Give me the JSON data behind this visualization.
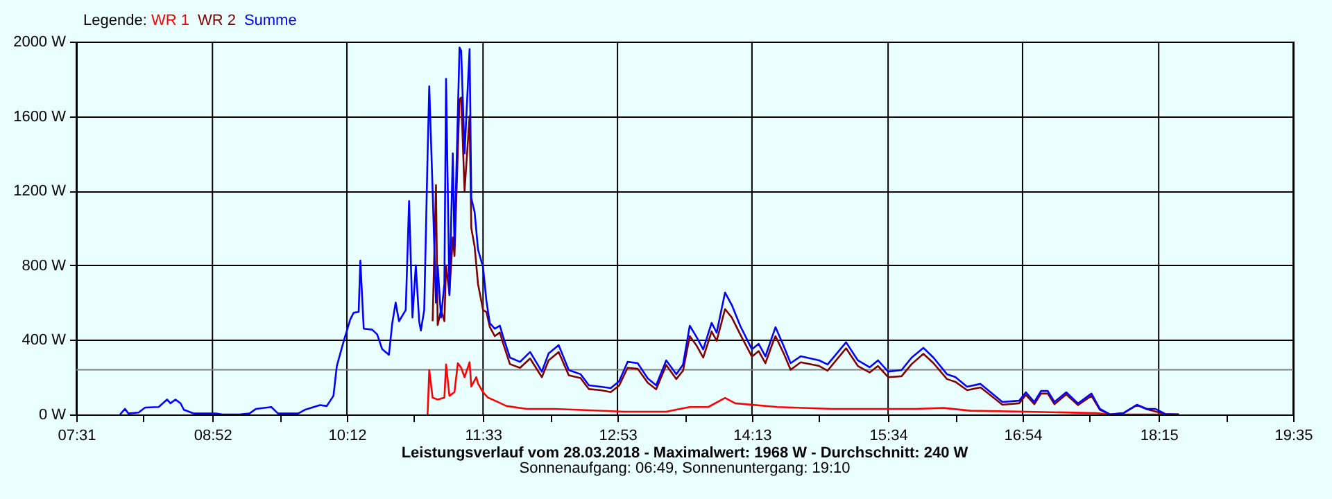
{
  "chart_data": {
    "type": "line",
    "title": "Leistungsverlauf vom 28.03.2018 - Maximalwert: 1968 W - Durchschnitt: 240 W",
    "subtitle": "Sonnenaufgang: 06:49, Sonnenuntergang: 19:10",
    "legend_title": "Legende:",
    "legend": "top left",
    "grid": true,
    "marker": "none",
    "line_style": "solid",
    "xlim": [
      "2018-03-28T07:31",
      "2018-03-28T19:35"
    ],
    "xticks": [
      {
        "value": "2018-03-28T07:31",
        "label": "07:31"
      },
      {
        "value": "2018-03-28T08:11",
        "label": null
      },
      {
        "value": "2018-03-28T08:52",
        "label": "08:52"
      },
      {
        "value": "2018-03-28T09:32",
        "label": null
      },
      {
        "value": "2018-03-28T10:12",
        "label": "10:12"
      },
      {
        "value": "2018-03-28T10:52",
        "label": null
      },
      {
        "value": "2018-03-28T11:33",
        "label": "11:33"
      },
      {
        "value": "2018-03-28T12:13",
        "label": null
      },
      {
        "value": "2018-03-28T12:53",
        "label": "12:53"
      },
      {
        "value": "2018-03-28T13:33",
        "label": null
      },
      {
        "value": "2018-03-28T14:13",
        "label": "14:13"
      },
      {
        "value": "2018-03-28T14:53",
        "label": null
      },
      {
        "value": "2018-03-28T15:34",
        "label": "15:34"
      },
      {
        "value": "2018-03-28T16:14",
        "label": null
      },
      {
        "value": "2018-03-28T16:54",
        "label": "16:54"
      },
      {
        "value": "2018-03-28T17:34",
        "label": null
      },
      {
        "value": "2018-03-28T18:15",
        "label": "18:15"
      },
      {
        "value": "2018-03-28T18:55",
        "label": null
      },
      {
        "value": "2018-03-28T19:35",
        "label": "19:35"
      }
    ],
    "ylim": [
      0,
      2000
    ],
    "yticks": [
      {
        "value": 0,
        "label": "0 W"
      },
      {
        "value": 400,
        "label": "400 W"
      },
      {
        "value": 800,
        "label": "800 W"
      },
      {
        "value": 1200,
        "label": "1200 W"
      },
      {
        "value": 1600,
        "label": "1600 W"
      },
      {
        "value": 2000,
        "label": "2000 W"
      }
    ],
    "ref_lines": [
      {
        "axis": "y",
        "value": 240,
        "color": "#808080"
      }
    ],
    "series": [
      {
        "name": "WR 1",
        "color": "#ff0000",
        "x": [
          "2018-03-28T11:00",
          "2018-03-28T11:01",
          "2018-03-28T11:03",
          "2018-03-28T11:06",
          "2018-03-28T11:10",
          "2018-03-28T11:11",
          "2018-03-28T11:13",
          "2018-03-28T11:16",
          "2018-03-28T11:18",
          "2018-03-28T11:20",
          "2018-03-28T11:22",
          "2018-03-28T11:25",
          "2018-03-28T11:26",
          "2018-03-28T11:29",
          "2018-03-28T11:30",
          "2018-03-28T11:33",
          "2018-03-28T11:36",
          "2018-03-28T11:41",
          "2018-03-28T11:47",
          "2018-03-28T11:59",
          "2018-03-28T12:16",
          "2018-03-28T12:57",
          "2018-03-28T13:22",
          "2018-03-28T13:36",
          "2018-03-28T13:47",
          "2018-03-28T13:57",
          "2018-03-28T14:03",
          "2018-03-28T14:28",
          "2018-03-28T15:01",
          "2018-03-28T15:34",
          "2018-03-28T15:50",
          "2018-03-28T16:07",
          "2018-03-28T16:23",
          "2018-03-28T16:56",
          "2018-03-28T17:38",
          "2018-03-28T17:46",
          "2018-03-28T18:27"
        ],
        "values": [
          0,
          238,
          90,
          80,
          90,
          268,
          100,
          120,
          275,
          250,
          200,
          280,
          150,
          200,
          166,
          119,
          90,
          70,
          45,
          30,
          30,
          15,
          15,
          40,
          40,
          89,
          60,
          40,
          30,
          30,
          30,
          35,
          20,
          15,
          7,
          0,
          0
        ]
      },
      {
        "name": "WR 2",
        "color": "#800000",
        "x": [
          "2018-03-28T11:03",
          "2018-03-28T11:05",
          "2018-03-28T11:06",
          "2018-03-28T11:08",
          "2018-03-28T11:10",
          "2018-03-28T11:11",
          "2018-03-28T11:13",
          "2018-03-28T11:15",
          "2018-03-28T11:16",
          "2018-03-28T11:19",
          "2018-03-28T11:20",
          "2018-03-28T11:22",
          "2018-03-28T11:25",
          "2018-03-28T11:26",
          "2018-03-28T11:28",
          "2018-03-28T11:30",
          "2018-03-28T11:33",
          "2018-03-28T11:35",
          "2018-03-28T11:37",
          "2018-03-28T11:40",
          "2018-03-28T11:43",
          "2018-03-28T11:45",
          "2018-03-28T11:49",
          "2018-03-28T11:55",
          "2018-03-28T12:01",
          "2018-03-28T12:08",
          "2018-03-28T12:12",
          "2018-03-28T12:18",
          "2018-03-28T12:24",
          "2018-03-28T12:31",
          "2018-03-28T12:36",
          "2018-03-28T12:43",
          "2018-03-28T12:49",
          "2018-03-28T12:54",
          "2018-03-28T12:59",
          "2018-03-28T13:05",
          "2018-03-28T13:11",
          "2018-03-28T13:16",
          "2018-03-28T13:22",
          "2018-03-28T13:28",
          "2018-03-28T13:32",
          "2018-03-28T13:36",
          "2018-03-28T13:40",
          "2018-03-28T13:44",
          "2018-03-28T13:49",
          "2018-03-28T13:52",
          "2018-03-28T13:57",
          "2018-03-28T14:01",
          "2018-03-28T14:06",
          "2018-03-28T14:13",
          "2018-03-28T14:17",
          "2018-03-28T14:21",
          "2018-03-28T14:25",
          "2018-03-28T14:27",
          "2018-03-28T14:32",
          "2018-03-28T14:36",
          "2018-03-28T14:42",
          "2018-03-28T14:53",
          "2018-03-28T14:58",
          "2018-03-28T15:09",
          "2018-03-28T15:16",
          "2018-03-28T15:23",
          "2018-03-28T15:28",
          "2018-03-28T15:34",
          "2018-03-28T15:42",
          "2018-03-28T15:48",
          "2018-03-28T15:55",
          "2018-03-28T16:01",
          "2018-03-28T16:09",
          "2018-03-28T16:14",
          "2018-03-28T16:21",
          "2018-03-28T16:29",
          "2018-03-28T16:34",
          "2018-03-28T16:42",
          "2018-03-28T16:52",
          "2018-03-28T16:56",
          "2018-03-28T17:01",
          "2018-03-28T17:05",
          "2018-03-28T17:09",
          "2018-03-28T17:13",
          "2018-03-28T17:20",
          "2018-03-28T17:27",
          "2018-03-28T17:35",
          "2018-03-28T17:40",
          "2018-03-28T17:46",
          "2018-03-28T17:54",
          "2018-03-28T18:02",
          "2018-03-28T18:08",
          "2018-03-28T18:19",
          "2018-03-28T18:27"
        ],
        "values": [
          500,
          1230,
          480,
          560,
          500,
          800,
          650,
          950,
          850,
          1690,
          1700,
          1200,
          1600,
          1000,
          900,
          700,
          560,
          550,
          470,
          420,
          440,
          380,
          270,
          250,
          300,
          200,
          290,
          335,
          210,
          195,
          136,
          130,
          120,
          155,
          250,
          245,
          170,
          135,
          265,
          190,
          235,
          420,
          370,
          305,
          445,
          395,
          565,
          520,
          430,
          310,
          340,
          275,
          375,
          420,
          325,
          240,
          280,
          260,
          235,
          355,
          260,
          225,
          260,
          200,
          205,
          270,
          325,
          275,
          190,
          175,
          130,
          145,
          110,
          52,
          60,
          105,
          55,
          112,
          112,
          55,
          108,
          50,
          100,
          25,
          0,
          7,
          50,
          28,
          2,
          0
        ]
      },
      {
        "name": "Summe",
        "color": "#0000ff",
        "x": [
          "2018-03-28T07:57",
          "2018-03-28T08:00",
          "2018-03-28T08:02",
          "2018-03-28T08:08",
          "2018-03-28T08:12",
          "2018-03-28T08:20",
          "2018-03-28T08:25",
          "2018-03-28T08:27",
          "2018-03-28T08:30",
          "2018-03-28T08:33",
          "2018-03-28T08:35",
          "2018-03-28T08:41",
          "2018-03-28T08:54",
          "2018-03-28T08:58",
          "2018-03-28T09:08",
          "2018-03-28T09:14",
          "2018-03-28T09:18",
          "2018-03-28T09:27",
          "2018-03-28T09:31",
          "2018-03-28T09:39",
          "2018-03-28T09:43",
          "2018-03-28T09:47",
          "2018-03-28T09:56",
          "2018-03-28T10:00",
          "2018-03-28T10:04",
          "2018-03-28T10:06",
          "2018-03-28T10:10",
          "2018-03-28T10:14",
          "2018-03-28T10:16",
          "2018-03-28T10:19",
          "2018-03-28T10:20",
          "2018-03-28T10:22",
          "2018-03-28T10:27",
          "2018-03-28T10:30",
          "2018-03-28T10:33",
          "2018-03-28T10:37",
          "2018-03-28T10:39",
          "2018-03-28T10:41",
          "2018-03-28T10:43",
          "2018-03-28T10:47",
          "2018-03-28T10:49",
          "2018-03-28T10:51",
          "2018-03-28T10:53",
          "2018-03-28T10:55",
          "2018-03-28T10:56",
          "2018-03-28T10:58",
          "2018-03-28T11:00",
          "2018-03-28T11:01",
          "2018-03-28T11:03",
          "2018-03-28T11:05",
          "2018-03-28T11:06",
          "2018-03-28T11:08",
          "2018-03-28T11:10",
          "2018-03-28T11:11",
          "2018-03-28T11:13",
          "2018-03-28T11:15",
          "2018-03-28T11:16",
          "2018-03-28T11:19",
          "2018-03-28T11:20",
          "2018-03-28T11:22",
          "2018-03-28T11:25",
          "2018-03-28T11:26",
          "2018-03-28T11:28",
          "2018-03-28T11:30",
          "2018-03-28T11:33",
          "2018-03-28T11:35",
          "2018-03-28T11:37",
          "2018-03-28T11:40",
          "2018-03-28T11:43",
          "2018-03-28T11:45",
          "2018-03-28T11:49",
          "2018-03-28T11:55",
          "2018-03-28T12:01",
          "2018-03-28T12:08",
          "2018-03-28T12:12",
          "2018-03-28T12:18",
          "2018-03-28T12:24",
          "2018-03-28T12:31",
          "2018-03-28T12:36",
          "2018-03-28T12:43",
          "2018-03-28T12:49",
          "2018-03-28T12:54",
          "2018-03-28T12:59",
          "2018-03-28T13:05",
          "2018-03-28T13:11",
          "2018-03-28T13:16",
          "2018-03-28T13:22",
          "2018-03-28T13:28",
          "2018-03-28T13:32",
          "2018-03-28T13:36",
          "2018-03-28T13:40",
          "2018-03-28T13:44",
          "2018-03-28T13:49",
          "2018-03-28T13:52",
          "2018-03-28T13:57",
          "2018-03-28T14:01",
          "2018-03-28T14:06",
          "2018-03-28T14:13",
          "2018-03-28T14:17",
          "2018-03-28T14:21",
          "2018-03-28T14:25",
          "2018-03-28T14:27",
          "2018-03-28T14:32",
          "2018-03-28T14:36",
          "2018-03-28T14:42",
          "2018-03-28T14:53",
          "2018-03-28T14:58",
          "2018-03-28T15:09",
          "2018-03-28T15:16",
          "2018-03-28T15:23",
          "2018-03-28T15:28",
          "2018-03-28T15:34",
          "2018-03-28T15:42",
          "2018-03-28T15:48",
          "2018-03-28T15:55",
          "2018-03-28T16:01",
          "2018-03-28T16:09",
          "2018-03-28T16:14",
          "2018-03-28T16:21",
          "2018-03-28T16:29",
          "2018-03-28T16:34",
          "2018-03-28T16:42",
          "2018-03-28T16:52",
          "2018-03-28T16:56",
          "2018-03-28T17:01",
          "2018-03-28T17:05",
          "2018-03-28T17:09",
          "2018-03-28T17:13",
          "2018-03-28T17:20",
          "2018-03-28T17:27",
          "2018-03-28T17:35",
          "2018-03-28T17:40",
          "2018-03-28T17:46",
          "2018-03-28T17:54",
          "2018-03-28T18:02",
          "2018-03-28T18:08",
          "2018-03-28T18:13",
          "2018-03-28T18:19",
          "2018-03-28T18:27"
        ],
        "values": [
          0,
          30,
          5,
          10,
          37,
          40,
          80,
          60,
          80,
          60,
          25,
          5,
          5,
          0,
          0,
          5,
          30,
          40,
          5,
          5,
          5,
          25,
          50,
          45,
          100,
          260,
          390,
          510,
          545,
          550,
          825,
          460,
          455,
          430,
          350,
          320,
          490,
          600,
          500,
          560,
          1145,
          520,
          800,
          500,
          450,
          560,
          1390,
          1760,
          1200,
          600,
          800,
          520,
          700,
          1800,
          640,
          1400,
          900,
          1968,
          1950,
          1400,
          1960,
          1160,
          1085,
          885,
          790,
          610,
          490,
          460,
          476,
          416,
          305,
          282,
          335,
          230,
          327,
          372,
          238,
          216,
          156,
          149,
          141,
          178,
          282,
          275,
          193,
          156,
          290,
          216,
          268,
          476,
          416,
          349,
          491,
          439,
          654,
          587,
          476,
          349,
          379,
          312,
          416,
          468,
          364,
          275,
          312,
          290,
          268,
          387,
          290,
          253,
          290,
          230,
          238,
          305,
          357,
          305,
          216,
          201,
          149,
          164,
          126,
          67,
          74,
          119,
          67,
          126,
          126,
          67,
          119,
          59,
          112,
          30,
          0,
          7,
          52,
          30,
          30,
          2,
          0
        ]
      }
    ]
  }
}
